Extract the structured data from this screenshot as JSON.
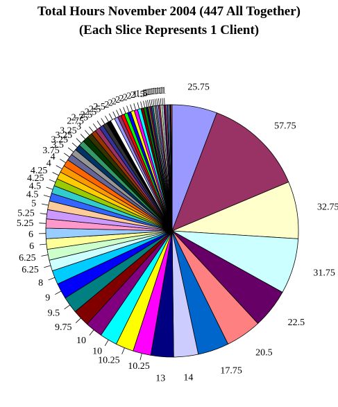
{
  "chart_data": {
    "type": "pie",
    "title": "Total Hours November 2004 (447 All Together)",
    "subtitle": "(Each Slice Represents 1 Client)",
    "total": 447,
    "slices": [
      {
        "value": 25.75,
        "label": "25.75",
        "color": "#9999ff"
      },
      {
        "value": 57.75,
        "label": "57.75",
        "color": "#993366"
      },
      {
        "value": 32.75,
        "label": "32.75",
        "color": "#ffffcc"
      },
      {
        "value": 31.75,
        "label": "31.75",
        "color": "#ccffff"
      },
      {
        "value": 22.5,
        "label": "22.5",
        "color": "#660066"
      },
      {
        "value": 20.5,
        "label": "20.5",
        "color": "#ff8080"
      },
      {
        "value": 17.75,
        "label": "17.75",
        "color": "#0066cc"
      },
      {
        "value": 14,
        "label": "14",
        "color": "#ccccff"
      },
      {
        "value": 13,
        "label": "13",
        "color": "#000080"
      },
      {
        "value": 10.25,
        "label": "10.25",
        "color": "#ff00ff"
      },
      {
        "value": 10.25,
        "label": "10.25",
        "color": "#ffff00"
      },
      {
        "value": 10,
        "label": "10",
        "color": "#00ffff"
      },
      {
        "value": 10,
        "label": "10",
        "color": "#800080"
      },
      {
        "value": 9.75,
        "label": "9.75",
        "color": "#800000"
      },
      {
        "value": 9.5,
        "label": "9.5",
        "color": "#008080"
      },
      {
        "value": 9,
        "label": "9",
        "color": "#0000ff"
      },
      {
        "value": 8,
        "label": "8",
        "color": "#00ccff"
      },
      {
        "value": 6.25,
        "label": "6.25",
        "color": "#ccffff"
      },
      {
        "value": 6.25,
        "label": "6.25",
        "color": "#ccffcc"
      },
      {
        "value": 6,
        "label": "6",
        "color": "#ffff99"
      },
      {
        "value": 6,
        "label": "6",
        "color": "#99ccff"
      },
      {
        "value": 5.25,
        "label": "5.25",
        "color": "#ff99cc"
      },
      {
        "value": 5.25,
        "label": "5.25",
        "color": "#cc99ff"
      },
      {
        "value": 5,
        "label": "5",
        "color": "#ffcc99"
      },
      {
        "value": 4.5,
        "label": "4.5",
        "color": "#3366ff"
      },
      {
        "value": 4.5,
        "label": "4.5",
        "color": "#33cccc"
      },
      {
        "value": 4.25,
        "label": "4.25",
        "color": "#99cc00"
      },
      {
        "value": 4.25,
        "label": "4.25",
        "color": "#ffcc00"
      },
      {
        "value": 4,
        "label": "4",
        "color": "#ff9900"
      },
      {
        "value": 4,
        "label": "4",
        "color": "#ff6600"
      },
      {
        "value": 3.75,
        "label": "3.75",
        "color": "#666699"
      },
      {
        "value": 3.5,
        "label": "3.5",
        "color": "#969696"
      },
      {
        "value": 3.25,
        "label": "3.25",
        "color": "#003366"
      },
      {
        "value": 3.25,
        "label": "3.25",
        "color": "#339966"
      },
      {
        "value": 3.25,
        "label": "3.25",
        "color": "#003300"
      },
      {
        "value": 3,
        "label": "3",
        "color": "#333300"
      },
      {
        "value": 2.75,
        "label": "2.75",
        "color": "#993300"
      },
      {
        "value": 2.75,
        "label": "2.75",
        "color": "#993366"
      },
      {
        "value": 2.5,
        "label": "2.5",
        "color": "#333399"
      },
      {
        "value": 2.5,
        "label": "2.5",
        "color": "#333333"
      },
      {
        "value": 2.5,
        "label": "2.5",
        "color": "#000000"
      },
      {
        "value": 2.5,
        "label": "2.5",
        "color": "#ffffff"
      },
      {
        "value": 2,
        "label": "2",
        "color": "#9999ff"
      },
      {
        "value": 2,
        "label": "2",
        "color": "#993366"
      },
      {
        "value": 2,
        "label": "2",
        "color": "#ff0000"
      },
      {
        "value": 2,
        "label": "2",
        "color": "#00ff00"
      },
      {
        "value": 2,
        "label": "2",
        "color": "#0000ff"
      },
      {
        "value": 2,
        "label": "2",
        "color": "#ffff00"
      },
      {
        "value": 2,
        "label": "2",
        "color": "#ff00ff"
      },
      {
        "value": 2,
        "label": "2",
        "color": "#00ffff"
      },
      {
        "value": 1.5,
        "label": "1.5",
        "color": "#800000"
      },
      {
        "value": 1.5,
        "label": "1.5",
        "color": "#008000"
      },
      {
        "value": 1,
        "label": "1",
        "color": "#000080"
      },
      {
        "value": 1,
        "label": "1",
        "color": "#808000"
      },
      {
        "value": 1,
        "label": "1",
        "color": "#800080"
      },
      {
        "value": 1,
        "label": "1",
        "color": "#008080"
      },
      {
        "value": 1,
        "label": "1",
        "color": "#c0c0c0"
      },
      {
        "value": 1,
        "label": "1",
        "color": "#808080"
      },
      {
        "value": 1,
        "label": "1",
        "color": "#9999ff"
      },
      {
        "value": 1,
        "label": "1",
        "color": "#993366"
      },
      {
        "value": 1,
        "label": "1",
        "color": "#ffffcc"
      },
      {
        "value": 1,
        "label": "1",
        "color": "#ccffff"
      },
      {
        "value": 1,
        "label": "1",
        "color": "#660066"
      },
      {
        "value": 0.75,
        "label": "",
        "color": "#ff8080"
      },
      {
        "value": 0.75,
        "label": "",
        "color": "#0066cc"
      },
      {
        "value": 0.75,
        "label": "",
        "color": "#ccccff"
      },
      {
        "value": 0.5,
        "label": "",
        "color": "#000080"
      },
      {
        "value": 0.5,
        "label": "",
        "color": "#ff00ff"
      },
      {
        "value": 0.5,
        "label": "",
        "color": "#ffff00"
      }
    ],
    "legend": "none",
    "slice_outline_color": "#000000"
  }
}
